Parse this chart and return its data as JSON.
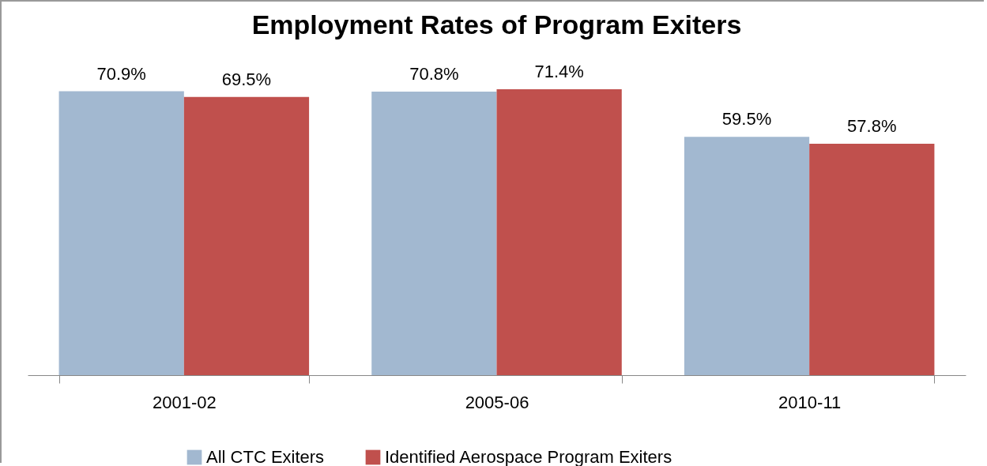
{
  "chart_data": {
    "type": "bar",
    "title": "Employment Rates of Program Exiters",
    "categories": [
      "2001-02",
      "2005-06",
      "2010-11"
    ],
    "series": [
      {
        "name": "All CTC Exiters",
        "color": "#a2b8d0",
        "values": [
          70.9,
          70.8,
          59.5
        ],
        "value_labels": [
          "70.9%",
          "70.8%",
          "59.5%"
        ]
      },
      {
        "name": "Identified Aerospace Program Exiters",
        "color": "#c0504d",
        "values": [
          69.5,
          71.4,
          57.8
        ],
        "value_labels": [
          "69.5%",
          "71.4%",
          "57.8%"
        ]
      }
    ],
    "tick_labels": "x",
    "grid": false,
    "legend": "bottom"
  }
}
